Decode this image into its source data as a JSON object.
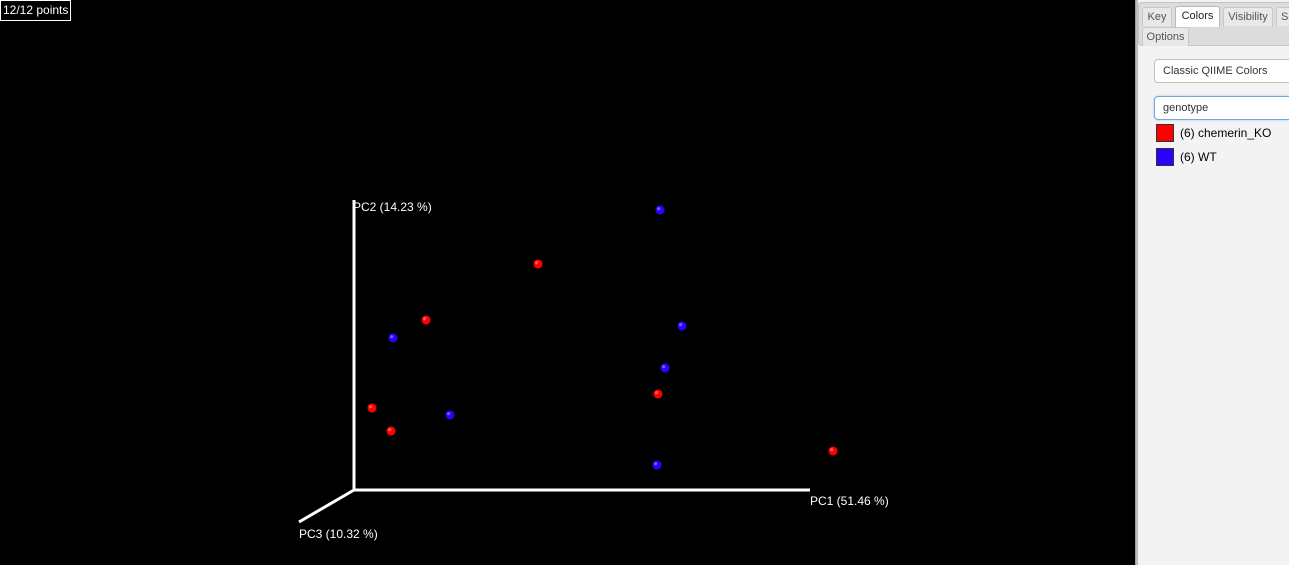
{
  "viewer": {
    "point_count": "12/12 points",
    "background": "#000000",
    "axes": {
      "pc1_label": "PC1 (51.46 %)",
      "pc2_label": "PC2 (14.23 %)",
      "pc3_label": "PC3 (10.32 %)",
      "axis_color": "#ffffff"
    }
  },
  "chart_data": {
    "type": "scatter",
    "xlabel": "PC1 (51.46 %)",
    "ylabel": "PC2 (14.23 %)",
    "zlabel": "PC3 (10.32 %)",
    "series": [
      {
        "name": "chemerin_KO",
        "color": "#ff0000",
        "points": [
          {
            "x": 184,
            "y": 226
          },
          {
            "x": 72,
            "y": 170
          },
          {
            "x": 18,
            "y": 82
          },
          {
            "x": 37,
            "y": 59
          },
          {
            "x": 304,
            "y": 96
          },
          {
            "x": 479,
            "y": 39
          }
        ]
      },
      {
        "name": "WT",
        "color": "#2a00ff",
        "points": [
          {
            "x": 306,
            "y": 280
          },
          {
            "x": 328,
            "y": 164
          },
          {
            "x": 311,
            "y": 122
          },
          {
            "x": 39,
            "y": 152
          },
          {
            "x": 96,
            "y": 75
          },
          {
            "x": 303,
            "y": 25
          }
        ]
      }
    ]
  },
  "panel": {
    "tabs": [
      {
        "label": "Key"
      },
      {
        "label": "Colors"
      },
      {
        "label": "Visibility"
      },
      {
        "label": "Sc"
      },
      {
        "label": "Options"
      }
    ],
    "active_tab": "Colors",
    "colormap_value": "Classic QIIME Colors",
    "category_value": "genotype",
    "legend": [
      {
        "label": "(6) chemerin_KO",
        "color": "#ff0000"
      },
      {
        "label": "(6) WT",
        "color": "#2a00ff"
      }
    ]
  }
}
